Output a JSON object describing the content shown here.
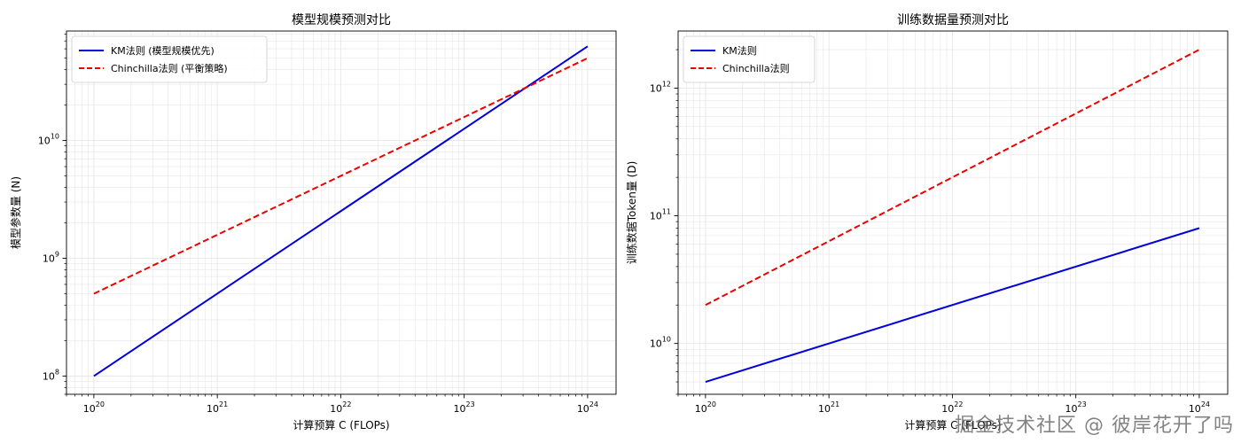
{
  "watermark": "掘金技术社区 @ 彼岸花开了吗",
  "colors": {
    "km": "#0000dd",
    "chinchilla": "#ee0000",
    "grid": "#e6e6e6",
    "axis": "#000000"
  },
  "chart_data": [
    {
      "type": "line",
      "title": "模型规模预测对比",
      "xlabel": "计算预算 C (FLOPs)",
      "ylabel": "模型参数量 (N)",
      "xscale": "log",
      "yscale": "log",
      "xlim": [
        6e+19,
        1.7e+24
      ],
      "ylim": [
        70000000.0,
        85000000000.0
      ],
      "xticks": [
        {
          "value": 1e+20,
          "base": "10",
          "exp": "20"
        },
        {
          "value": 1e+21,
          "base": "10",
          "exp": "21"
        },
        {
          "value": 1e+22,
          "base": "10",
          "exp": "22"
        },
        {
          "value": 1e+23,
          "base": "10",
          "exp": "23"
        },
        {
          "value": 1e+24,
          "base": "10",
          "exp": "24"
        }
      ],
      "yticks": [
        {
          "value": 100000000.0,
          "base": "10",
          "exp": "8"
        },
        {
          "value": 1000000000.0,
          "base": "10",
          "exp": "9"
        },
        {
          "value": 10000000000.0,
          "base": "10",
          "exp": "10"
        }
      ],
      "grid": true,
      "legend_position": "top-left",
      "series": [
        {
          "name": "KM法则 (模型规模优先)",
          "style": "solid",
          "colorKey": "km",
          "x": [
            1e+20,
            1e+24
          ],
          "y": [
            100000000.0,
            63000000000.0
          ]
        },
        {
          "name": "Chinchilla法则 (平衡策略)",
          "style": "dashed",
          "colorKey": "chinchilla",
          "x": [
            1e+20,
            1e+24
          ],
          "y": [
            500000000.0,
            50000000000.0
          ]
        }
      ]
    },
    {
      "type": "line",
      "title": "训练数据量预测对比",
      "xlabel": "计算预算 C (FLOPs)",
      "ylabel": "训练数据Token量 (D)",
      "xscale": "log",
      "yscale": "log",
      "xlim": [
        6e+19,
        1.7e+24
      ],
      "ylim": [
        4000000000.0,
        2800000000000.0
      ],
      "xticks": [
        {
          "value": 1e+20,
          "base": "10",
          "exp": "20"
        },
        {
          "value": 1e+21,
          "base": "10",
          "exp": "21"
        },
        {
          "value": 1e+22,
          "base": "10",
          "exp": "22"
        },
        {
          "value": 1e+23,
          "base": "10",
          "exp": "23"
        },
        {
          "value": 1e+24,
          "base": "10",
          "exp": "24"
        }
      ],
      "yticks": [
        {
          "value": 10000000000.0,
          "base": "10",
          "exp": "10"
        },
        {
          "value": 100000000000.0,
          "base": "10",
          "exp": "11"
        },
        {
          "value": 1000000000000.0,
          "base": "10",
          "exp": "12"
        }
      ],
      "grid": true,
      "legend_position": "top-left",
      "series": [
        {
          "name": "KM法则",
          "style": "solid",
          "colorKey": "km",
          "x": [
            1e+20,
            1e+24
          ],
          "y": [
            5000000000.0,
            80000000000.0
          ]
        },
        {
          "name": "Chinchilla法则",
          "style": "dashed",
          "colorKey": "chinchilla",
          "x": [
            1e+20,
            1e+24
          ],
          "y": [
            20000000000.0,
            2000000000000.0
          ]
        }
      ]
    }
  ]
}
